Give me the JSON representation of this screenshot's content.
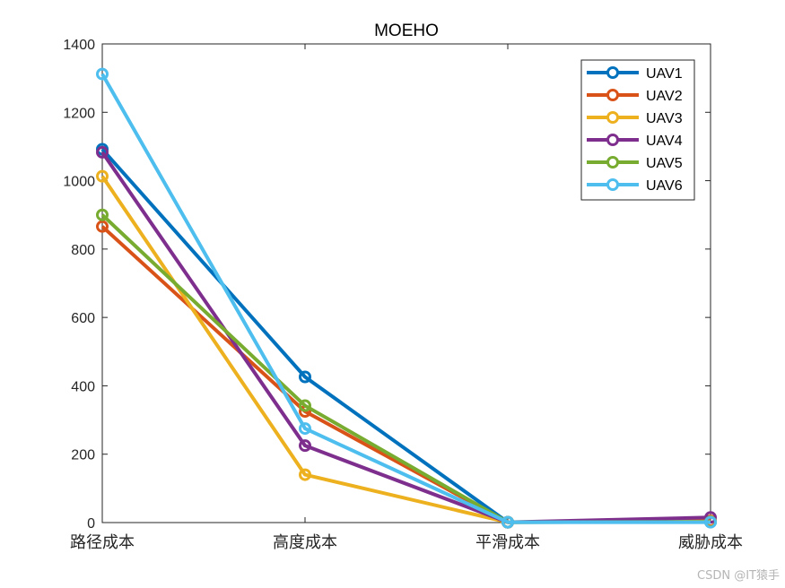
{
  "chart_data": {
    "type": "line",
    "title": "MOEHO",
    "xlabel": "",
    "ylabel": "",
    "categories": [
      "路径成本",
      "高度成本",
      "平滑成本",
      "威胁成本"
    ],
    "ylim": [
      0,
      1400
    ],
    "yticks": [
      0,
      200,
      400,
      600,
      800,
      1000,
      1200,
      1400
    ],
    "legend_position": "top-right",
    "series": [
      {
        "name": "UAV1",
        "color": "#0072BD",
        "values": [
          1092,
          426,
          1,
          2
        ]
      },
      {
        "name": "UAV2",
        "color": "#D95319",
        "values": [
          866,
          325,
          1,
          5
        ]
      },
      {
        "name": "UAV3",
        "color": "#EDB120",
        "values": [
          1013,
          140,
          1,
          3
        ]
      },
      {
        "name": "UAV4",
        "color": "#7E2F8E",
        "values": [
          1083,
          225,
          1,
          15
        ]
      },
      {
        "name": "UAV5",
        "color": "#77AC30",
        "values": [
          900,
          342,
          1,
          2
        ]
      },
      {
        "name": "UAV6",
        "color": "#4DBEEE",
        "values": [
          1312,
          275,
          1,
          1
        ]
      }
    ]
  },
  "watermark": "CSDN @IT猿手"
}
